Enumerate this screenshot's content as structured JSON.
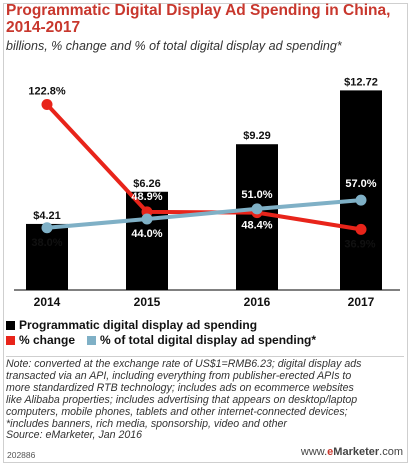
{
  "header": {
    "title": "Programmatic Digital Display Ad Spending in China, 2014-2017",
    "subtitle": "billions, % change and % of total digital display ad spending*"
  },
  "legend": {
    "spending": "Programmatic digital display ad spending",
    "change": "% change",
    "share": "% of total digital display ad spending*"
  },
  "note": {
    "line1": "Note: converted at the exchange rate of US$1=RMB6.23; digital display ads",
    "line2": "transacted via an API, including everything from publisher-erected APIs to",
    "line3": "more standardized RTB technology; includes ads on ecommerce websites",
    "line4": "like Alibaba properties; includes advertising that appears on desktop/laptop",
    "line5": "computers, mobile phones, tablets and other internet-connected devices;",
    "line6": "*includes banners, rich media, sponsorship, video and other",
    "line7": "Source: eMarketer, Jan 2016"
  },
  "footer": {
    "id": "202886",
    "brand_prefix": "www.",
    "brand_e": "e",
    "brand_name": "Marketer",
    "brand_suffix": ".com"
  },
  "colors": {
    "bar": "#000000",
    "change": "#e8241a",
    "share": "#7fb0c6",
    "title": "#c8372d"
  },
  "chart_data": {
    "type": "bar",
    "categories": [
      "2014",
      "2015",
      "2016",
      "2017"
    ],
    "bar_series": {
      "name": "Programmatic digital display ad spending",
      "values": [
        4.21,
        6.26,
        9.29,
        12.72
      ],
      "labels": [
        "$4.21",
        "$6.26",
        "$9.29",
        "$12.72"
      ]
    },
    "line_series": [
      {
        "name": "% change",
        "values": [
          122.8,
          48.9,
          48.4,
          36.9
        ],
        "labels": [
          "122.8%",
          "48.9%",
          "48.4%",
          "36.9%"
        ]
      },
      {
        "name": "% of total digital display ad spending*",
        "values": [
          38.0,
          44.0,
          51.0,
          57.0
        ],
        "labels": [
          "38.0%",
          "44.0%",
          "51.0%",
          "57.0%"
        ]
      }
    ],
    "ylim_bars": [
      0,
      13
    ],
    "ylim_pct": [
      0,
      130
    ]
  }
}
